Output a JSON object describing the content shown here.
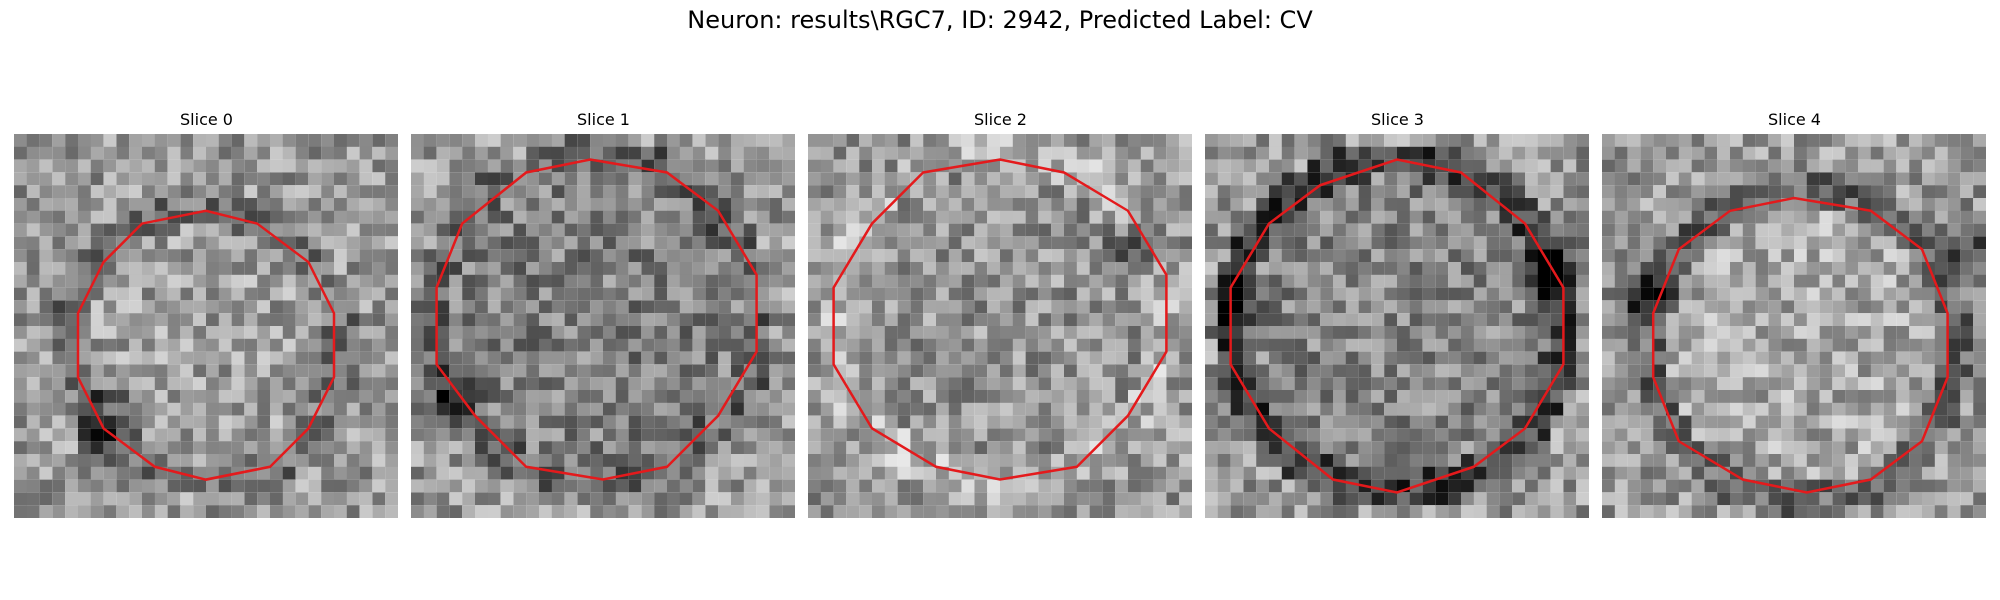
{
  "figure": {
    "title": "Neuron: results\\RGC7, ID: 2942, Predicted Label: CV"
  },
  "panels": [
    {
      "title": "Slice 0"
    },
    {
      "title": "Slice 1"
    },
    {
      "title": "Slice 2"
    },
    {
      "title": "Slice 3"
    },
    {
      "title": "Slice 4"
    }
  ],
  "colors": {
    "contour": "#e41a1c",
    "colormap": "grayscale"
  }
}
